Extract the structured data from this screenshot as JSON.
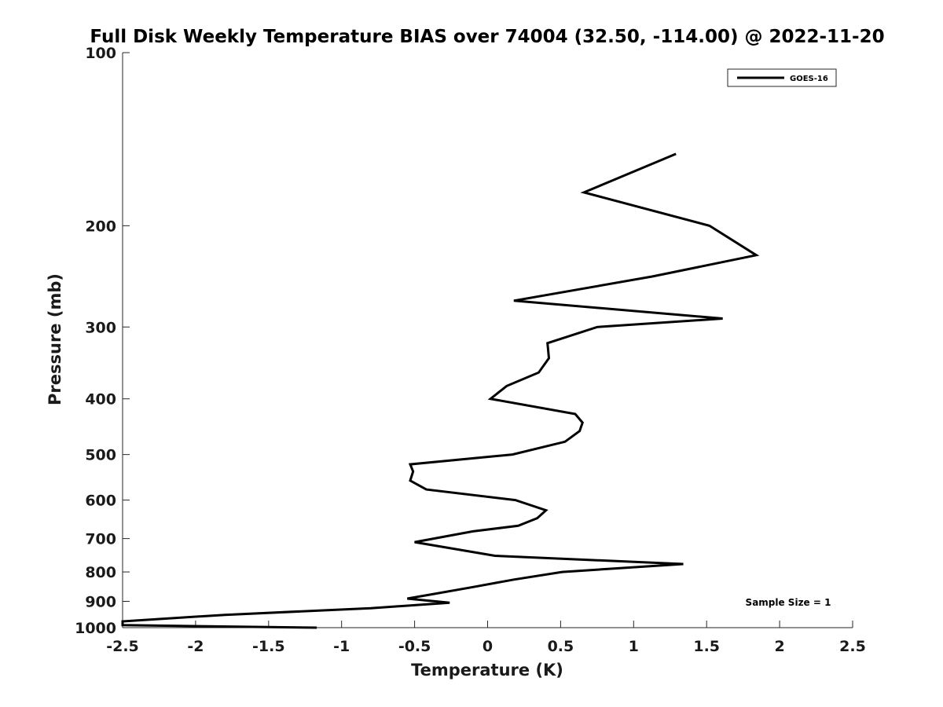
{
  "chart_data": {
    "type": "line",
    "title": "Full Disk Weekly Temperature BIAS over 74004 (32.50, -114.00) @ 2022-11-20",
    "xlabel": "Temperature (K)",
    "ylabel": "Pressure (mb)",
    "xlim": [
      -2.5,
      2.5
    ],
    "ylim": [
      100,
      1000
    ],
    "y_scale": "log",
    "y_reversed": true,
    "x_ticks": [
      "-2.5",
      "-2",
      "-1.5",
      "-1",
      "-0.5",
      "0",
      "0.5",
      "1",
      "1.5",
      "2",
      "2.5"
    ],
    "y_ticks": [
      "100",
      "200",
      "300",
      "400",
      "500",
      "600",
      "700",
      "800",
      "900",
      "1000"
    ],
    "grid": false,
    "legend_position": "top-right",
    "annotation": "Sample Size = 1",
    "series": [
      {
        "name": "GOES-16",
        "color": "#000000",
        "points": [
          {
            "x": 1.29,
            "y": 150
          },
          {
            "x": 0.66,
            "y": 175
          },
          {
            "x": 1.52,
            "y": 200
          },
          {
            "x": 1.84,
            "y": 225
          },
          {
            "x": 1.13,
            "y": 245
          },
          {
            "x": 0.18,
            "y": 270
          },
          {
            "x": 1.61,
            "y": 290
          },
          {
            "x": 0.75,
            "y": 300
          },
          {
            "x": 0.41,
            "y": 320
          },
          {
            "x": 0.42,
            "y": 340
          },
          {
            "x": 0.35,
            "y": 360
          },
          {
            "x": 0.13,
            "y": 380
          },
          {
            "x": 0.02,
            "y": 400
          },
          {
            "x": 0.6,
            "y": 425
          },
          {
            "x": 0.65,
            "y": 440
          },
          {
            "x": 0.63,
            "y": 455
          },
          {
            "x": 0.53,
            "y": 475
          },
          {
            "x": 0.17,
            "y": 500
          },
          {
            "x": -0.53,
            "y": 520
          },
          {
            "x": -0.51,
            "y": 535
          },
          {
            "x": -0.53,
            "y": 555
          },
          {
            "x": -0.42,
            "y": 575
          },
          {
            "x": 0.19,
            "y": 600
          },
          {
            "x": 0.4,
            "y": 625
          },
          {
            "x": 0.34,
            "y": 645
          },
          {
            "x": 0.21,
            "y": 665
          },
          {
            "x": -0.1,
            "y": 680
          },
          {
            "x": -0.5,
            "y": 710
          },
          {
            "x": 0.05,
            "y": 750
          },
          {
            "x": 1.34,
            "y": 775
          },
          {
            "x": 0.51,
            "y": 800
          },
          {
            "x": 0.18,
            "y": 825
          },
          {
            "x": -0.1,
            "y": 850
          },
          {
            "x": -0.38,
            "y": 875
          },
          {
            "x": -0.55,
            "y": 890
          },
          {
            "x": -0.26,
            "y": 905
          },
          {
            "x": -0.8,
            "y": 925
          },
          {
            "x": -1.8,
            "y": 950
          },
          {
            "x": -2.5,
            "y": 975
          },
          {
            "x": -2.5,
            "y": 990
          },
          {
            "x": -1.17,
            "y": 1000
          }
        ]
      }
    ]
  }
}
